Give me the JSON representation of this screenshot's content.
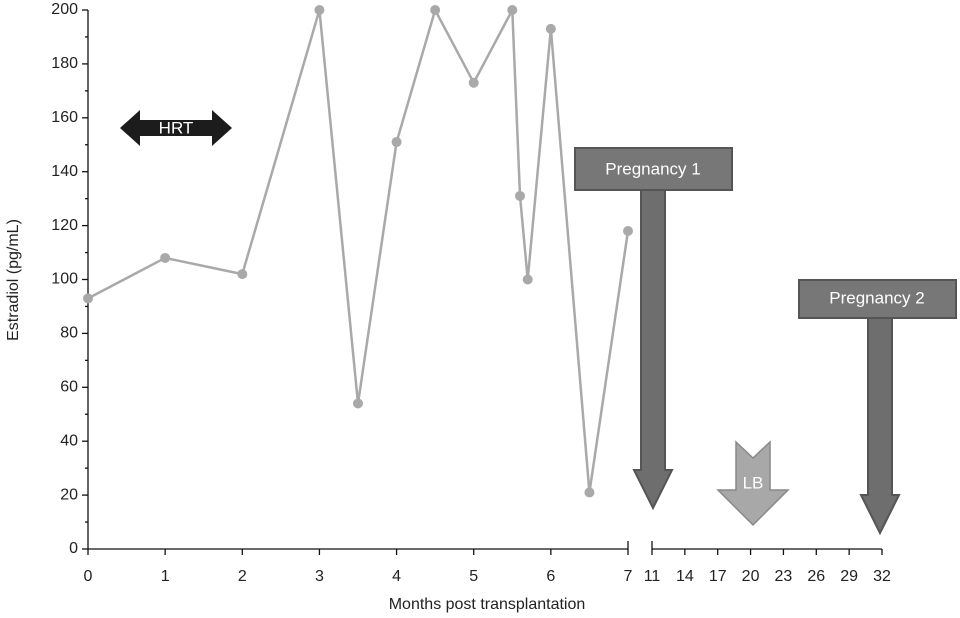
{
  "chart_data": {
    "type": "line",
    "x_label": "Months post transplantation",
    "y_label": "Estradiol (pg/mL)",
    "x": [
      0,
      1,
      2,
      3,
      3.5,
      4,
      4.5,
      5,
      5.5,
      5.6,
      5.7,
      6,
      6.5,
      7
    ],
    "series": [
      {
        "color": "#a9a9a9",
        "values": [
          93,
          108,
          102,
          200,
          54,
          151,
          200,
          173,
          200,
          131,
          100,
          193,
          21,
          118
        ]
      }
    ],
    "xlim": [
      0,
      7
    ],
    "xticks": [
      0,
      1,
      2,
      3,
      4,
      5,
      6,
      7
    ],
    "xlim_break": [
      11,
      32
    ],
    "xticks_break": [
      11,
      14,
      17,
      20,
      23,
      26,
      29,
      32
    ],
    "ylim": [
      0,
      200
    ],
    "yticks": [
      0,
      20,
      40,
      60,
      80,
      100,
      120,
      140,
      160,
      180,
      200
    ],
    "annotations": [
      "HRT",
      "Pregnancy 1",
      "LB",
      "Pregnancy 2"
    ]
  }
}
